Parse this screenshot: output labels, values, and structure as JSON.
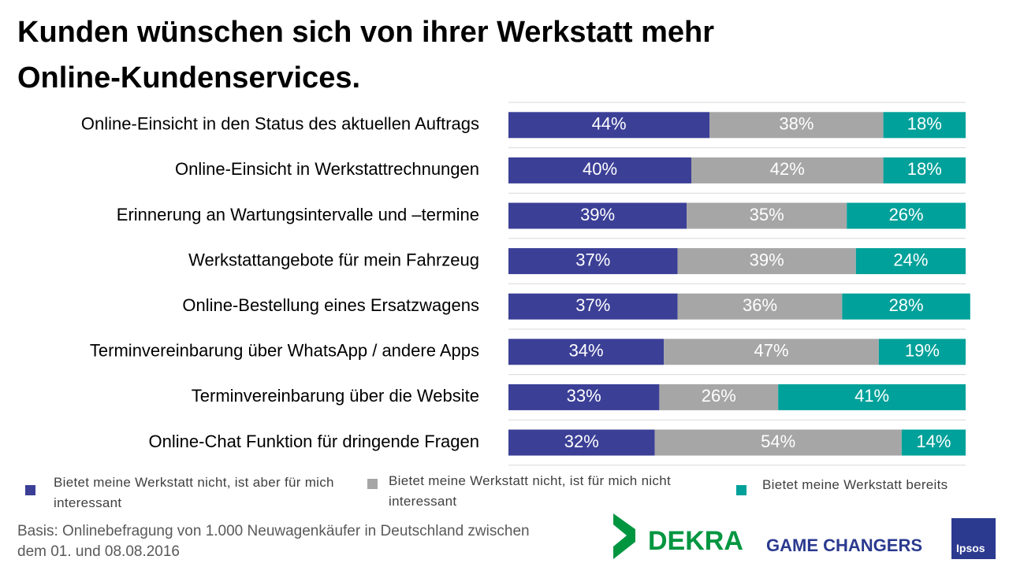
{
  "chart_data": {
    "type": "stacked-bar-horizontal",
    "title": "Kunden wünschen sich von ihrer Werkstatt mehr Online-Kundenservices.",
    "categories": [
      "Online-Einsicht in den Status des aktuellen Auftrags",
      "Online-Einsicht in Werkstattrechnungen",
      "Erinnerung an Wartungsintervalle und –termine",
      "Werkstattangebote für mein Fahrzeug",
      "Online-Bestellung eines Ersatzwagens",
      "Terminvereinbarung über WhatsApp / andere Apps",
      "Terminvereinbarung über die Website",
      "Online-Chat Funktion für dringende Fragen"
    ],
    "series": [
      {
        "name": "Bietet meine Werkstatt nicht, ist aber für mich interessant",
        "color": "#3b3f96",
        "values": [
          44,
          40,
          39,
          37,
          37,
          34,
          33,
          32
        ],
        "value_labels": [
          "44%",
          "40%",
          "39%",
          "37%",
          "37%",
          "34%",
          "33%",
          "32%"
        ]
      },
      {
        "name": "Bietet meine Werkstatt nicht, ist für mich nicht interessant",
        "color": "#a6a6a6",
        "values": [
          38,
          42,
          35,
          39,
          36,
          47,
          26,
          54
        ],
        "value_labels": [
          "38%",
          "42%",
          "35%",
          "39%",
          "36%",
          "47%",
          "26%",
          "54%"
        ]
      },
      {
        "name": "Bietet meine Werkstatt bereits",
        "color": "#00a19a",
        "values": [
          18,
          18,
          26,
          24,
          28,
          19,
          41,
          14
        ],
        "value_labels": [
          "18%",
          "18%",
          "26%",
          "24%",
          "28%",
          "19%",
          "41%",
          "14%"
        ]
      }
    ],
    "xlim": [
      0,
      100
    ],
    "grid": true,
    "footnote": "Basis:  Onlinebefragung von 1.000 Neuwagenkäufer in Deutschland zwischen dem 01. und 08.08.2016",
    "logos": [
      "DEKRA",
      "GAME CHANGERS",
      "Ipsos"
    ]
  }
}
